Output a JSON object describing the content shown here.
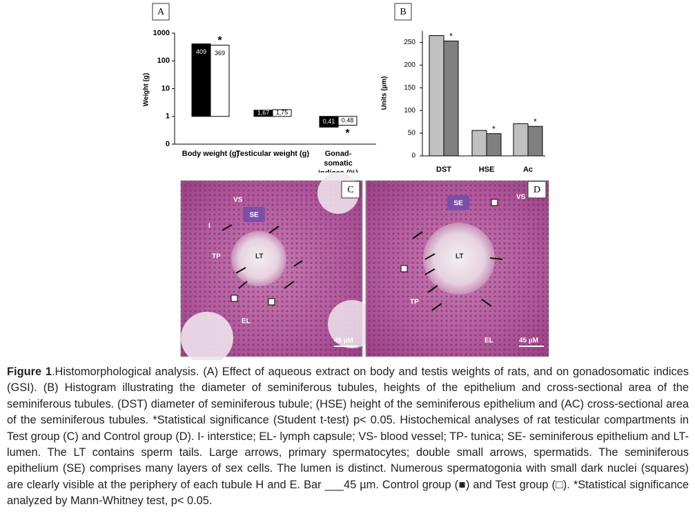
{
  "chart_data": [
    {
      "panel": "A",
      "type": "bar",
      "y_label": "Weight (g)",
      "log_scale": true,
      "baseline": 1,
      "ylim": [
        0.1,
        1000
      ],
      "yticks": [
        {
          "value": 0.1,
          "label": "0"
        },
        1,
        10,
        100,
        1000
      ],
      "categories": [
        "Body weight (g)",
        "Testicular weight (g)",
        "Gonad-somatic indices (%)"
      ],
      "series": [
        {
          "color": "#000000",
          "values": [
            409,
            1.67,
            0.41
          ],
          "value_labels": [
            "409",
            "1,67",
            "0,41"
          ]
        },
        {
          "color": "#ffffff",
          "values": [
            369,
            1.75,
            0.48
          ],
          "value_labels": [
            "369",
            "1,75",
            "0.48"
          ],
          "significance": [
            "*",
            null,
            "*"
          ]
        }
      ]
    },
    {
      "panel": "B",
      "type": "bar",
      "y_label": "Units (µm)",
      "ylim": [
        0,
        275
      ],
      "yticks": [
        0,
        50,
        100,
        150,
        200,
        250
      ],
      "categories": [
        "DST",
        "HSE",
        "Ac"
      ],
      "series": [
        {
          "color": "#c0c0c0",
          "values": [
            265,
            56,
            71
          ]
        },
        {
          "color": "#808080",
          "values": [
            253,
            49,
            65
          ],
          "significance": [
            "*",
            "*",
            "*"
          ]
        }
      ]
    }
  ],
  "micrographs": [
    {
      "panel": "C",
      "labels": [
        "VS",
        "SE",
        "I",
        "TP",
        "LT",
        "EL"
      ],
      "scale_bar": "45 µM"
    },
    {
      "panel": "D",
      "labels": [
        "SE",
        "VS",
        "LT",
        "TP",
        "EL"
      ],
      "scale_bar": "45 µM"
    }
  ],
  "caption": {
    "label": "Figure 1",
    "text": ".Histomorphological analysis. (A) Effect of aqueous extract on body and testis weights of rats, and on gonadosomatic indices (GSI). (B) Histogram illustrating the diameter of seminiferous tubules, heights of the epithelium and cross-sectional area of the seminiferous tubules. (DST) diameter of seminiferous tubule; (HSE) height of the seminiferous epithelium and (AC) cross-sectional area of the seminiferous tubules. *Statistical significance (Student t-test) p< 0.05. Histochemical analyses of rat testicular compartments in Test group (C) and Control group (D). I- interstice; EL- lymph capsule; VS- blood vessel; TP- tunica; SE- seminiferous epithelium and LT- lumen. The LT contains sperm tails. Large arrows, primary spermatocytes; double small arrows, spermatids. The seminiferous epithelium (SE) comprises many layers of sex cells. The lumen is distinct. Numerous spermatogonia with small dark nuclei (squares) are clearly visible at the periphery of each tubule H and E. Bar ___45 µm. Control group (■) and Test group (□). *Statistical significance analyzed by Mann-Whitney test, p< 0.05."
  }
}
